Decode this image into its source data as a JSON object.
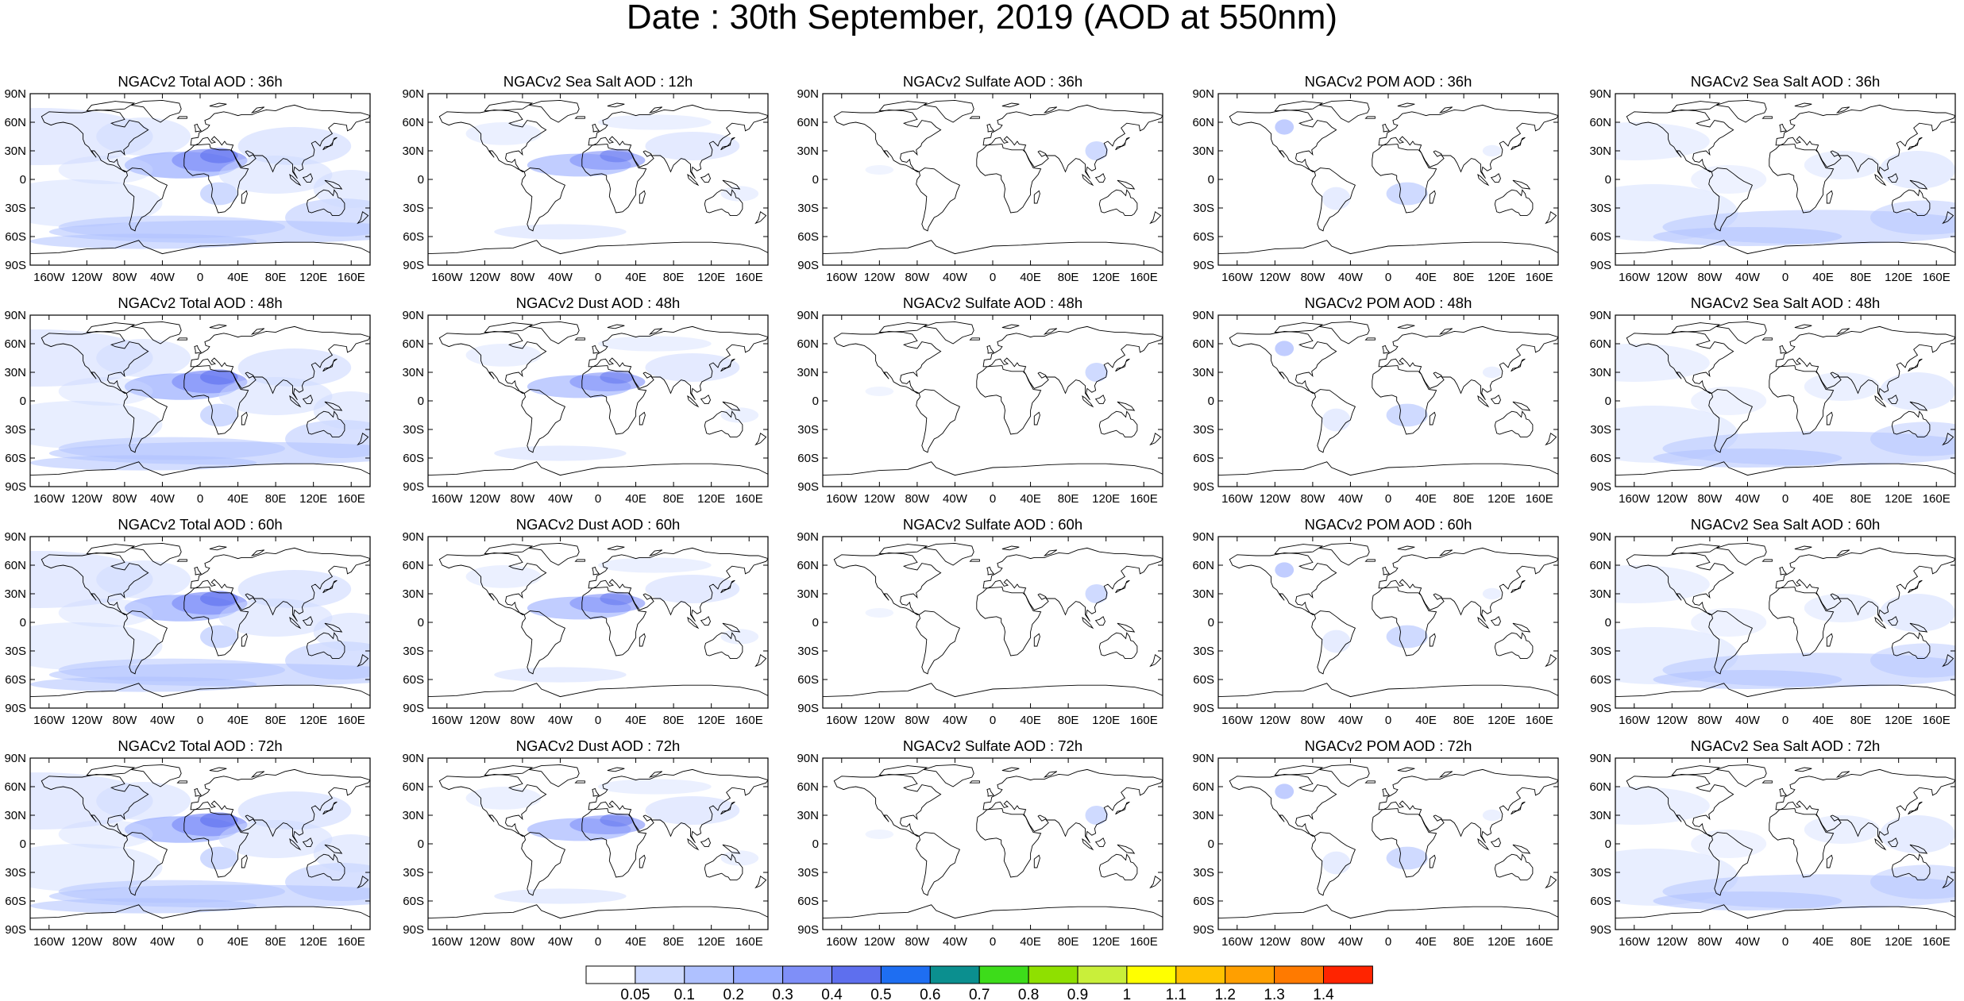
{
  "title": "Date : 30th September, 2019 (AOD at 550nm)",
  "panels": [
    [
      "NGACv2 Total AOD : 36h",
      "NGACv2 Sea Salt  AOD : 12h",
      "NGACv2 Sulfate AOD : 36h",
      "NGACv2 POM AOD : 36h",
      "NGACv2 Sea Salt  AOD : 36h"
    ],
    [
      "NGACv2 Total AOD : 48h",
      "NGACv2 Dust AOD : 48h",
      "NGACv2 Sulfate AOD : 48h",
      "NGACv2 POM AOD : 48h",
      "NGACv2 Sea Salt  AOD : 48h"
    ],
    [
      "NGACv2 Total AOD : 60h",
      "NGACv2 Dust AOD : 60h",
      "NGACv2 Sulfate AOD : 60h",
      "NGACv2 POM AOD : 60h",
      "NGACv2 Sea Salt  AOD : 60h"
    ],
    [
      "NGACv2 Total AOD : 72h",
      "NGACv2 Dust AOD : 72h",
      "NGACv2 Sulfate AOD : 72h",
      "NGACv2 POM AOD : 72h",
      "NGACv2 Sea Salt  AOD : 72h"
    ]
  ],
  "lat_labels": [
    "90N",
    "60N",
    "30N",
    "0",
    "30S",
    "60S",
    "90S"
  ],
  "lon_labels": [
    "160W",
    "120W",
    "80W",
    "40W",
    "0",
    "40E",
    "80E",
    "120E",
    "160E"
  ],
  "lon_values": [
    -160,
    -120,
    -80,
    -40,
    0,
    40,
    80,
    120,
    160
  ],
  "lat_values": [
    90,
    60,
    30,
    0,
    -30,
    -60,
    -90
  ],
  "colorbar": {
    "labels": [
      "0.05",
      "0.1",
      "0.2",
      "0.3",
      "0.4",
      "0.5",
      "0.6",
      "0.7",
      "0.8",
      "0.9",
      "1",
      "1.1",
      "1.2",
      "1.3",
      "1.4"
    ],
    "colors": [
      "#ffffff",
      "#cdd9ff",
      "#afc1ff",
      "#98acff",
      "#7f8ff8",
      "#5e6fee",
      "#1e6ef2",
      "#0b8f8f",
      "#3ddc1a",
      "#8fe000",
      "#c9ef3a",
      "#ffff00",
      "#ffc200",
      "#ff9f00",
      "#ff7a00",
      "#ff2400"
    ]
  },
  "field_type": [
    "total",
    "seasalt",
    "sulfate",
    "pom",
    "seasalt"
  ]
}
